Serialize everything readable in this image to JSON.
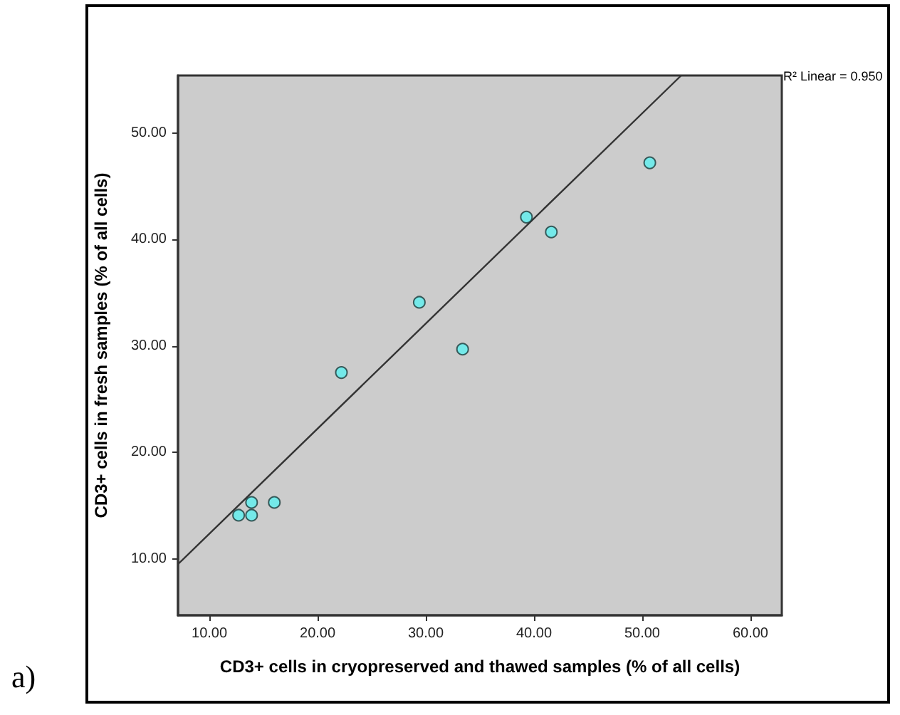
{
  "chart_data": {
    "type": "scatter",
    "xlabel": "CD3+ cells in cryopreserved and thawed samples (% of all cells)",
    "ylabel": "CD3+ cells in fresh samples (% of all cells)",
    "annotations": [
      "R² Linear = 0.950",
      "a)"
    ],
    "x": [
      12.7,
      13.9,
      13.9,
      16.0,
      22.2,
      29.4,
      33.4,
      39.3,
      41.6,
      50.7
    ],
    "series": [
      {
        "color": "#5ef0f0",
        "values": [
          14.1,
          14.1,
          15.3,
          15.3,
          27.5,
          34.1,
          29.7,
          42.1,
          40.7,
          47.2
        ]
      },
      {
        "type": "line",
        "color": "#333333",
        "x": [
          7.1,
          53.6
        ],
        "values": [
          9.5,
          55.4
        ],
        "marker": "none"
      }
    ],
    "marker": "circle",
    "line_style": "solid",
    "grid": false,
    "xlim": [
      7.1,
      62.9
    ],
    "xticks": [
      {
        "value": 10,
        "label": "10.00"
      },
      {
        "value": 20,
        "label": "20.00"
      },
      {
        "value": 30,
        "label": "30.00"
      },
      {
        "value": 40,
        "label": "40.00"
      },
      {
        "value": 50,
        "label": "50.00"
      },
      {
        "value": 60,
        "label": "60.00"
      }
    ],
    "ylim": [
      4.7,
      55.4
    ],
    "yticks": [
      {
        "value": 10,
        "label": "10.00"
      },
      {
        "value": 20,
        "label": "20.00"
      },
      {
        "value": 30,
        "label": "30.00"
      },
      {
        "value": 40,
        "label": "40.00"
      },
      {
        "value": 50,
        "label": "50.00"
      }
    ]
  }
}
